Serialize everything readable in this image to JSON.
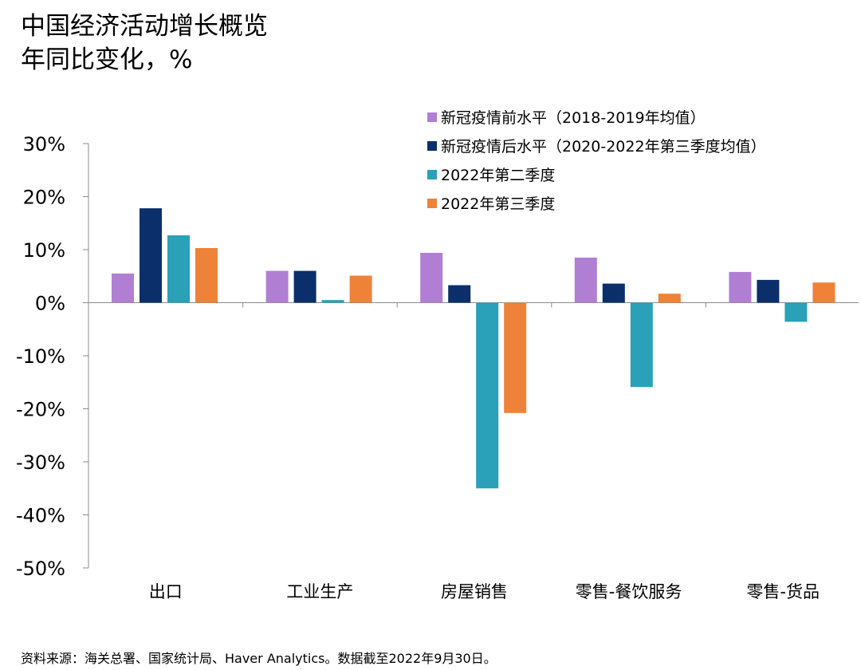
{
  "title": "中国经济活动增长概览",
  "subtitle": "年同比变化，%",
  "source": "资料来源：海关总署、国家统计局、Haver Analytics。数据截至2022年9月30日。",
  "chart_data": {
    "type": "bar",
    "title": "中国经济活动增长概览",
    "subtitle": "年同比变化，%",
    "xlabel": "",
    "ylabel": "",
    "ylim": [
      -50,
      30
    ],
    "yticks": [
      30,
      20,
      10,
      0,
      -10,
      -20,
      -30,
      -40,
      -50
    ],
    "ytick_labels": [
      "30%",
      "20%",
      "10%",
      "0%",
      "-10%",
      "-20%",
      "-30%",
      "-40%",
      "-50%"
    ],
    "categories": [
      "出口",
      "工业生产",
      "房屋销售",
      "零售-餐饮服务",
      "零售-货品"
    ],
    "legend_position": "top-right",
    "grid": false,
    "series": [
      {
        "name": "新冠疫情前水平（2018-2019年均值）",
        "color": "#b07fd3",
        "values": [
          5.5,
          6.0,
          9.4,
          8.5,
          5.8
        ]
      },
      {
        "name": "新冠疫情后水平（2020-2022年第三季度均值）",
        "color": "#0a2f6b",
        "values": [
          17.8,
          6.0,
          3.3,
          3.6,
          4.3
        ]
      },
      {
        "name": "2022年第二季度",
        "color": "#2aa0b9",
        "values": [
          12.7,
          0.5,
          -35.0,
          -15.9,
          -3.6
        ]
      },
      {
        "name": "2022年第三季度",
        "color": "#ee8238",
        "values": [
          10.3,
          5.1,
          -20.8,
          1.7,
          3.8
        ]
      }
    ]
  }
}
